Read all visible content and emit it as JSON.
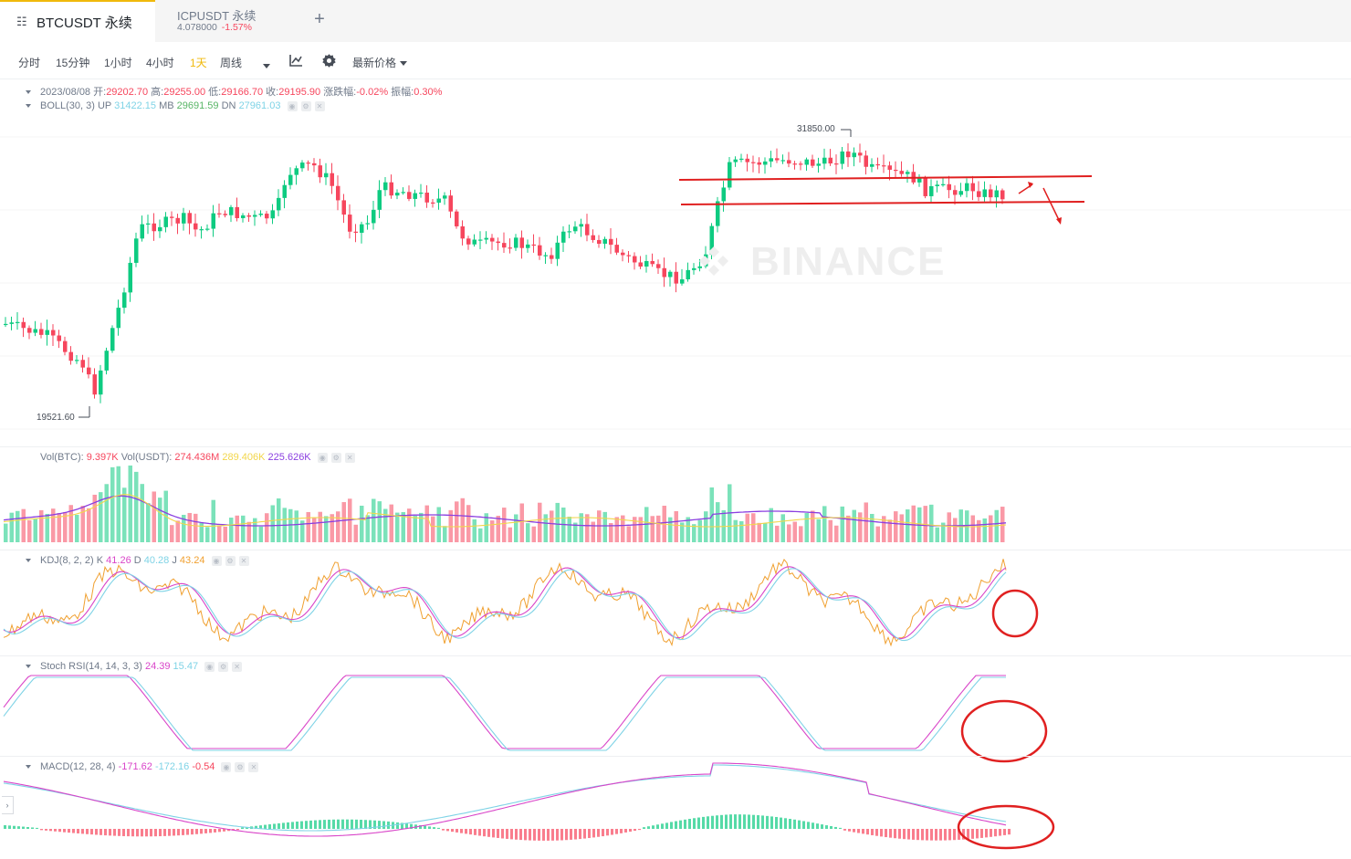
{
  "tabs": [
    {
      "symbol": "BTCUSDT 永续",
      "active": true
    },
    {
      "symbol": "ICPUSDT 永续",
      "price": "4.078000",
      "change": "-1.57%",
      "active": false
    }
  ],
  "add_tab_icon": "plus-icon",
  "intervals": [
    "分时",
    "15分钟",
    "1小时",
    "4小时",
    "1天",
    "周线"
  ],
  "selected_interval": "1天",
  "toolbar": {
    "price_type": "最新价格",
    "chart_icon": "indicator-icon",
    "settings_icon": "gear-icon"
  },
  "ohlc": {
    "date": "2023/08/08",
    "open_label": "开:",
    "open": "29202.70",
    "high_label": "高:",
    "high": "29255.00",
    "low_label": "低:",
    "low": "29166.70",
    "close_label": "收:",
    "close": "29195.90",
    "chg_label": "涨跌幅:",
    "chg": "-0.02%",
    "amp_label": "振幅:",
    "amp": "0.30%"
  },
  "boll": {
    "name": "BOLL(30, 3)",
    "up_label": "UP",
    "up": "31422.15",
    "mb_label": "MB",
    "mb": "29691.59",
    "dn_label": "DN",
    "dn": "27961.03"
  },
  "price_markers": {
    "high": "31850.00",
    "low": "19521.60"
  },
  "watermark": "BINANCE",
  "vol": {
    "name": "Vol(BTC):",
    "btc": "9.397K",
    "usdt_label": "Vol(USDT)",
    "usdt": "274.436M",
    "ma1": "289.406K",
    "ma2": "225.626K"
  },
  "kdj": {
    "name": "KDJ(8, 2, 2)",
    "k_label": "K",
    "k": "41.26",
    "d_label": "D",
    "d": "40.28",
    "j_label": "J",
    "j": "43.24"
  },
  "stoch_rsi": {
    "name": "Stoch RSI(14, 14, 3, 3)",
    "v1": "24.39",
    "v2": "15.47"
  },
  "macd": {
    "name": "MACD(12, 28, 4)",
    "v1": "-171.62",
    "v2": "-172.16",
    "v3": "-0.54"
  },
  "colors": {
    "up": "#0ecb81",
    "down": "#f6465d",
    "accent": "#f0b90b",
    "annotation": "#e02020"
  }
}
